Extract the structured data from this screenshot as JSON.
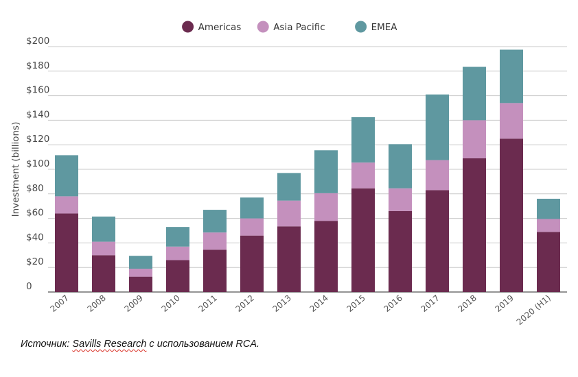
{
  "chart_data": {
    "type": "bar",
    "stacked": true,
    "title": "",
    "xlabel": "",
    "ylabel": "Investment (billions)",
    "ylim": [
      0,
      200
    ],
    "yticks": [
      {
        "value": 0,
        "label": "0"
      },
      {
        "value": 20,
        "label": "$20"
      },
      {
        "value": 40,
        "label": "$40"
      },
      {
        "value": 60,
        "label": "$60"
      },
      {
        "value": 80,
        "label": "$80"
      },
      {
        "value": 100,
        "label": "$100"
      },
      {
        "value": 120,
        "label": "$120"
      },
      {
        "value": 140,
        "label": "$140"
      },
      {
        "value": 160,
        "label": "$160"
      },
      {
        "value": 180,
        "label": "$180"
      },
      {
        "value": 200,
        "label": "$200"
      }
    ],
    "grid": true,
    "legend_position": "top-center",
    "categories": [
      "2007",
      "2008",
      "2009",
      "2010",
      "2011",
      "2012",
      "2013",
      "2014",
      "2015",
      "2016",
      "2017",
      "2018",
      "2019",
      "2020 (H1)"
    ],
    "series": [
      {
        "name": "Americas",
        "color": "#6b2b4f",
        "values": [
          64,
          30,
          12.5,
          26,
          34.5,
          46,
          53.5,
          58,
          84.5,
          66,
          83,
          109,
          125,
          49
        ]
      },
      {
        "name": "Asia Pacific",
        "color": "#c490bd",
        "values": [
          14,
          11,
          6.5,
          11,
          14,
          14,
          21,
          22.5,
          21,
          18.5,
          24.5,
          31,
          29,
          10.5
        ]
      },
      {
        "name": "EMEA",
        "color": "#5f98a0",
        "values": [
          33.5,
          20.5,
          10.5,
          16,
          18.5,
          17,
          22.5,
          35,
          37,
          36,
          53.5,
          43.5,
          43.5,
          16.5
        ]
      }
    ]
  },
  "source": {
    "prefix": "Источник: ",
    "brand": "Savills Research",
    "suffix": " с использованием RCA."
  }
}
